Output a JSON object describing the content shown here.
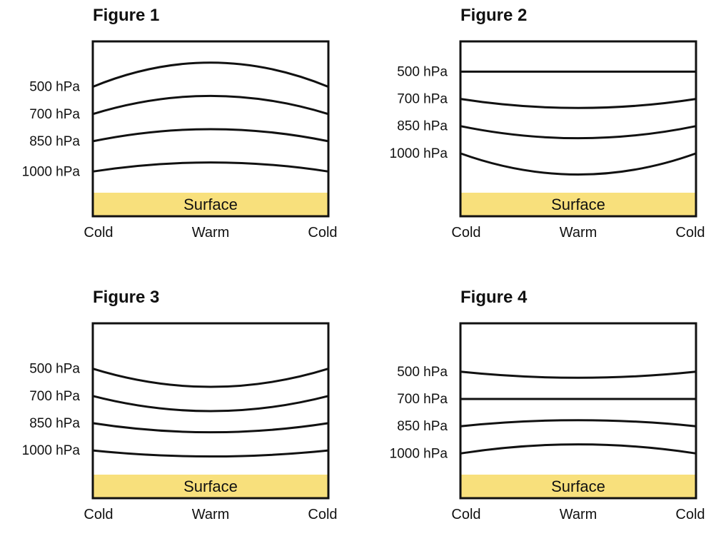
{
  "colors": {
    "surface": "#f8e07c",
    "line": "#111111",
    "frame": "#111111"
  },
  "figures": [
    {
      "title": "Figure 1",
      "surface_label": "Surface",
      "x_labels": [
        "Cold",
        "Warm",
        "Cold"
      ],
      "levels": [
        {
          "label": "500 hPa",
          "shape": "hump",
          "relative_height": [
            0.7,
            0.86,
            0.7
          ]
        },
        {
          "label": "700 hPa",
          "shape": "hump",
          "relative_height": [
            0.52,
            0.64,
            0.52
          ]
        },
        {
          "label": "850 hPa",
          "shape": "hump",
          "relative_height": [
            0.34,
            0.42,
            0.34
          ]
        },
        {
          "label": "1000 hPa",
          "shape": "hump",
          "relative_height": [
            0.14,
            0.2,
            0.14
          ]
        }
      ]
    },
    {
      "title": "Figure 2",
      "surface_label": "Surface",
      "x_labels": [
        "Cold",
        "Warm",
        "Cold"
      ],
      "levels": [
        {
          "label": "500 hPa",
          "shape": "flat",
          "relative_height": [
            0.8,
            0.8,
            0.8
          ]
        },
        {
          "label": "700 hPa",
          "shape": "dip",
          "relative_height": [
            0.62,
            0.56,
            0.62
          ]
        },
        {
          "label": "850 hPa",
          "shape": "dip",
          "relative_height": [
            0.44,
            0.36,
            0.44
          ]
        },
        {
          "label": "1000 hPa",
          "shape": "dip",
          "relative_height": [
            0.26,
            0.12,
            0.26
          ]
        }
      ]
    },
    {
      "title": "Figure 3",
      "surface_label": "Surface",
      "x_labels": [
        "Cold",
        "Warm",
        "Cold"
      ],
      "levels": [
        {
          "label": "500 hPa",
          "shape": "dip",
          "relative_height": [
            0.7,
            0.58,
            0.7
          ]
        },
        {
          "label": "700 hPa",
          "shape": "dip",
          "relative_height": [
            0.52,
            0.42,
            0.52
          ]
        },
        {
          "label": "850 hPa",
          "shape": "dip",
          "relative_height": [
            0.34,
            0.28,
            0.34
          ]
        },
        {
          "label": "1000 hPa",
          "shape": "dip",
          "relative_height": [
            0.16,
            0.12,
            0.16
          ]
        }
      ]
    },
    {
      "title": "Figure 4",
      "surface_label": "Surface",
      "x_labels": [
        "Cold",
        "Warm",
        "Cold"
      ],
      "levels": [
        {
          "label": "500 hPa",
          "shape": "dip",
          "relative_height": [
            0.68,
            0.64,
            0.68
          ]
        },
        {
          "label": "700 hPa",
          "shape": "flat",
          "relative_height": [
            0.5,
            0.5,
            0.5
          ]
        },
        {
          "label": "850 hPa",
          "shape": "hump",
          "relative_height": [
            0.32,
            0.36,
            0.32
          ]
        },
        {
          "label": "1000 hPa",
          "shape": "hump",
          "relative_height": [
            0.14,
            0.2,
            0.14
          ]
        }
      ]
    }
  ]
}
